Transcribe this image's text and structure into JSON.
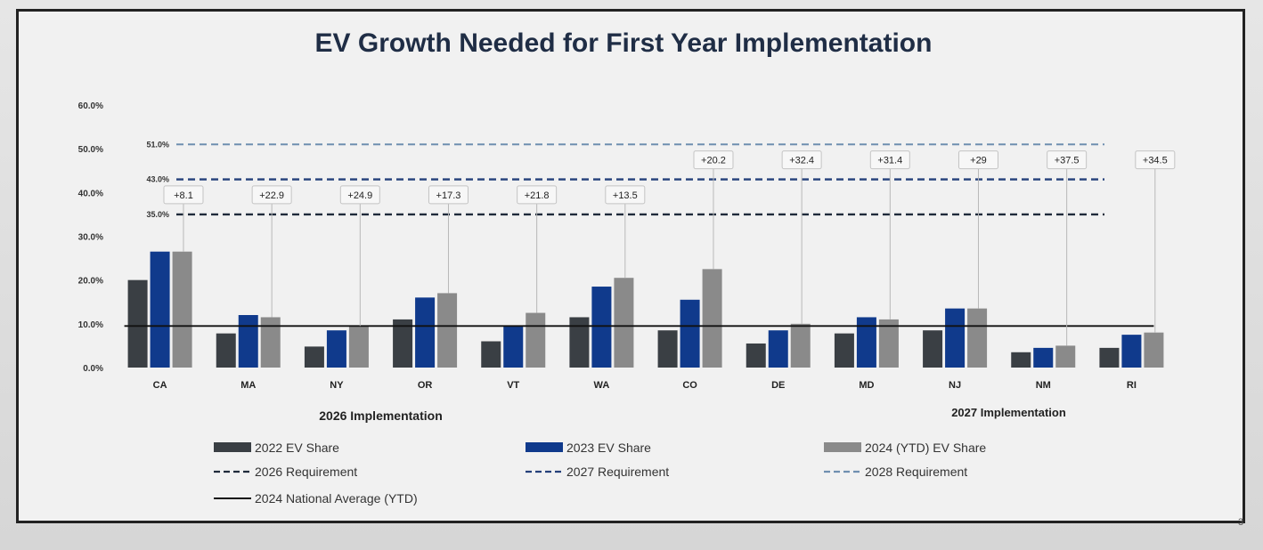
{
  "colors": {
    "series_2022": "#3a3f44",
    "series_2023": "#103a8c",
    "series_2024": "#8a8a8a",
    "req_2026": "#1f2a3a",
    "req_2027": "#24407a",
    "req_2028": "#6f8fb0",
    "national_avg": "#111111"
  },
  "chart_data": {
    "type": "bar",
    "title": "EV Growth Needed for First Year Implementation",
    "ylim": [
      0,
      60
    ],
    "yticks": [
      "0.0%",
      "10.0%",
      "20.0%",
      "30.0%",
      "40.0%",
      "50.0%",
      "60.0%"
    ],
    "categories": [
      "CA",
      "MA",
      "NY",
      "OR",
      "VT",
      "WA",
      "CO",
      "DE",
      "MD",
      "NJ",
      "NM",
      "RI"
    ],
    "series": [
      {
        "name": "2022 EV Share",
        "values": [
          20.0,
          7.8,
          4.8,
          11.0,
          6.0,
          11.5,
          8.5,
          5.5,
          7.8,
          8.5,
          3.5,
          4.5
        ]
      },
      {
        "name": "2023 EV Share",
        "values": [
          26.5,
          12.0,
          8.5,
          16.0,
          9.5,
          18.5,
          15.5,
          8.5,
          11.5,
          13.5,
          4.5,
          7.5
        ]
      },
      {
        "name": "2024 (YTD) EV Share",
        "values": [
          26.5,
          11.5,
          9.5,
          17.0,
          12.5,
          20.5,
          22.5,
          10.0,
          11.0,
          13.5,
          5.0,
          8.0
        ]
      }
    ],
    "requirements": [
      {
        "name": "2026 Requirement",
        "value": 35.0,
        "label": "35.0%"
      },
      {
        "name": "2027 Requirement",
        "value": 43.0,
        "label": "43.0%"
      },
      {
        "name": "2028 Requirement",
        "value": 51.0,
        "label": "51.0%"
      }
    ],
    "national_average": {
      "name": "2024 National Average (YTD)",
      "value": 9.5
    },
    "growth_needed": [
      "+8.1",
      "+22.9",
      "+24.9",
      "+17.3",
      "+21.8",
      "+13.5",
      "+20.2",
      "+32.4",
      "+31.4",
      "+29",
      "+37.5",
      "+34.5"
    ],
    "groups": [
      {
        "name": "2026 Implementation"
      },
      {
        "name": "2027 Implementation"
      }
    ],
    "legend": [
      {
        "label": "2022 EV Share",
        "kind": "bar",
        "color_key": "series_2022"
      },
      {
        "label": "2023 EV Share",
        "kind": "bar",
        "color_key": "series_2023"
      },
      {
        "label": "2024 (YTD) EV Share",
        "kind": "bar",
        "color_key": "series_2024"
      },
      {
        "label": "2026 Requirement",
        "kind": "dash",
        "color_key": "req_2026"
      },
      {
        "label": "2027 Requirement",
        "kind": "dash",
        "color_key": "req_2027"
      },
      {
        "label": "2028 Requirement",
        "kind": "dash",
        "color_key": "req_2028"
      },
      {
        "label": "2024 National Average (YTD)",
        "kind": "line",
        "color_key": "national_avg"
      }
    ]
  },
  "footer": {
    "page_number": "3"
  }
}
